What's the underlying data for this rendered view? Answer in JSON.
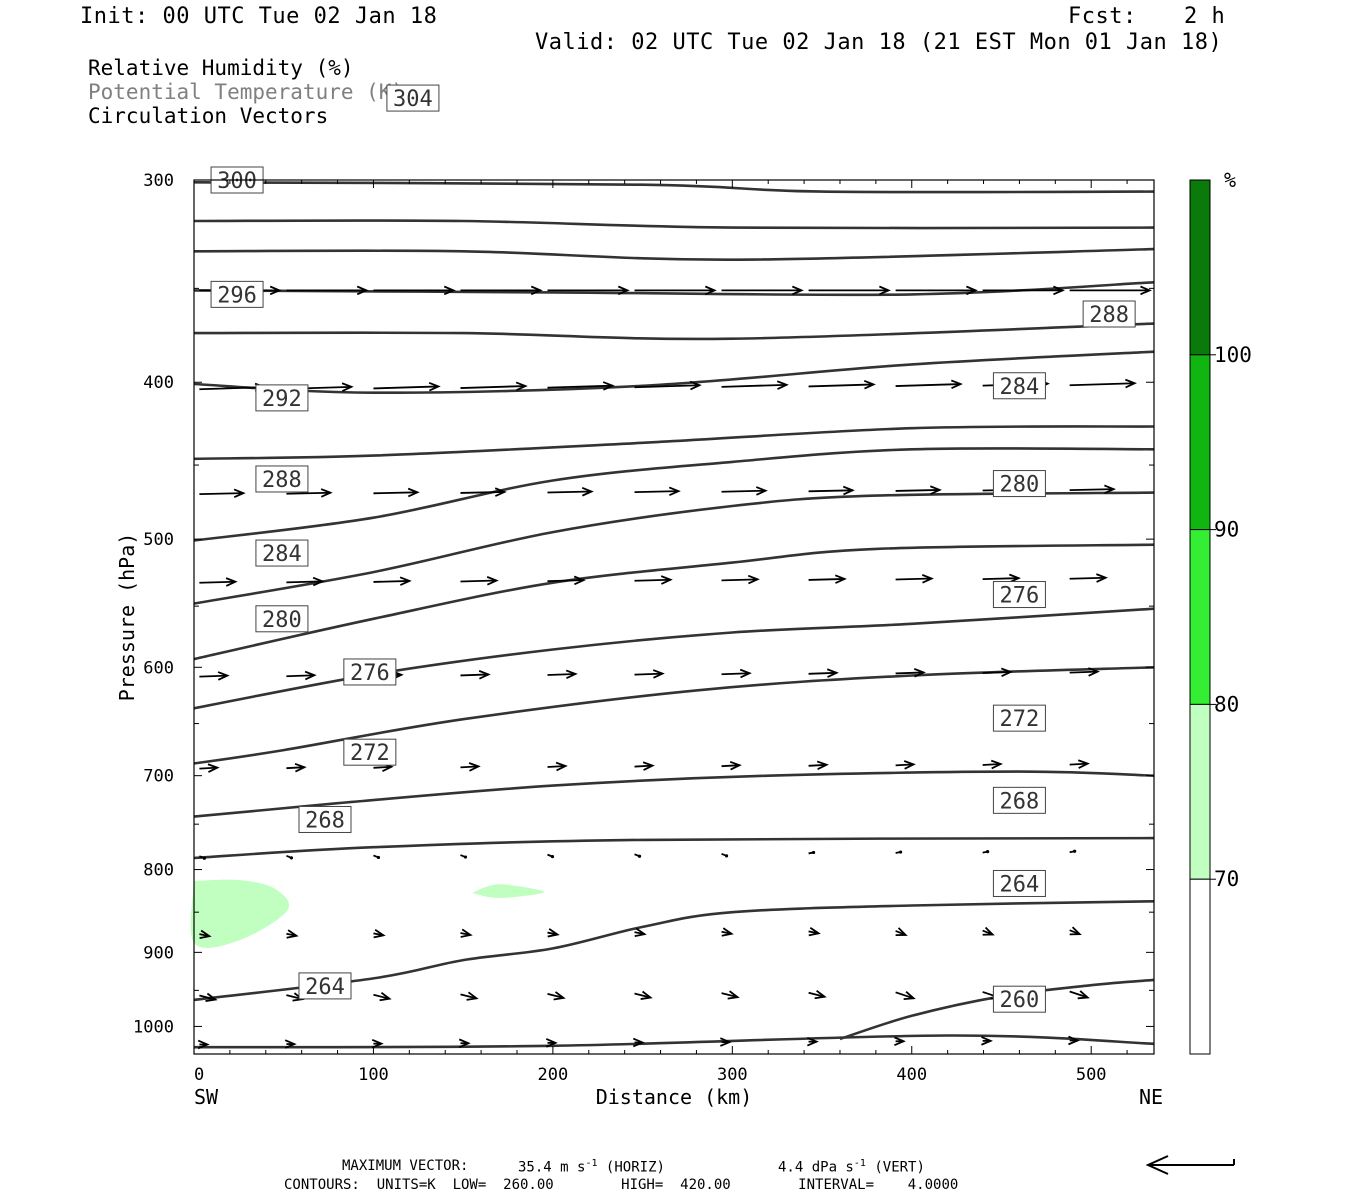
{
  "header": {
    "init": "Init: 00 UTC Tue 02 Jan 18",
    "fcst_label": "Fcst:",
    "fcst_value": "2 h",
    "valid": "Valid: 02 UTC Tue 02 Jan 18 (21 EST Mon 01 Jan 18)"
  },
  "legend": {
    "rh": "Relative Humidity (%)",
    "theta": "Potential Temperature (K)",
    "vectors": "Circulation Vectors"
  },
  "colors": {
    "rh_70": "#c0ffc0",
    "rh_80": "#33ee33",
    "rh_90": "#11b511",
    "rh_100": "#0a7a0a",
    "contour": "#333333",
    "theta_legend_text": "#808080"
  },
  "chart_data": {
    "type": "cross-section",
    "xlabel": "Distance (km)",
    "ylabel": "Pressure (hPa)",
    "xlim": [
      0,
      535
    ],
    "ylim": [
      1040,
      300
    ],
    "y_scale": "log",
    "x_ticks": [
      0,
      100,
      200,
      300,
      400,
      500
    ],
    "y_ticks": [
      300,
      400,
      500,
      600,
      700,
      800,
      900,
      1000
    ],
    "x_endpoints": {
      "left": "SW",
      "right": "NE"
    },
    "colorbar": {
      "unit": "%",
      "levels": [
        70,
        80,
        90,
        100
      ],
      "colors": [
        "#ffffff",
        "#c0ffc0",
        "#33ee33",
        "#11b511",
        "#0a7a0a"
      ]
    },
    "theta_contours": [
      {
        "label": "",
        "points": [
          [
            0,
            1030
          ],
          [
            200,
            1028
          ],
          [
            420,
            1013
          ],
          [
            535,
            1025
          ]
        ]
      },
      {
        "label": "260",
        "label_at": [
          460,
          962
        ],
        "points": [
          [
            360,
            1018
          ],
          [
            400,
            985
          ],
          [
            450,
            958
          ],
          [
            500,
            943
          ],
          [
            535,
            936
          ]
        ]
      },
      {
        "label": "264",
        "label_at": [
          73,
          944
        ],
        "points": [
          [
            0,
            963
          ],
          [
            100,
            934
          ],
          [
            150,
            910
          ],
          [
            200,
            895
          ],
          [
            250,
            868
          ],
          [
            300,
            850
          ],
          [
            400,
            842
          ],
          [
            535,
            837
          ]
        ]
      },
      {
        "label": "264",
        "label_at": [
          460,
          816
        ]
      },
      {
        "label": "268",
        "label_at": [
          73,
          745
        ],
        "points": [
          [
            0,
            787
          ],
          [
            100,
            775
          ],
          [
            250,
            767
          ],
          [
            535,
            765
          ]
        ]
      },
      {
        "label": "268",
        "label_at": [
          460,
          725
        ]
      },
      {
        "label": "272",
        "label_at": [
          98,
          677
        ],
        "points": [
          [
            0,
            742
          ],
          [
            80,
            728
          ],
          [
            200,
            710
          ],
          [
            320,
            700
          ],
          [
            460,
            696
          ],
          [
            535,
            700
          ]
        ]
      },
      {
        "label": "272",
        "label_at": [
          460,
          645
        ]
      },
      {
        "label": "276",
        "label_at": [
          98,
          604
        ],
        "points": [
          [
            0,
            688
          ],
          [
            50,
            675
          ],
          [
            150,
            646
          ],
          [
            280,
            620
          ],
          [
            400,
            607
          ],
          [
            535,
            600
          ]
        ]
      },
      {
        "label": "276",
        "label_at": [
          460,
          541
        ]
      },
      {
        "label": "280",
        "label_at": [
          49,
          560
        ],
        "points": [
          [
            0,
            636
          ],
          [
            100,
            606
          ],
          [
            200,
            585
          ],
          [
            300,
            571
          ],
          [
            400,
            564
          ],
          [
            535,
            552
          ]
        ]
      },
      {
        "label": "280",
        "label_at": [
          460,
          462
        ]
      },
      {
        "label": "284",
        "label_at": [
          49,
          510
        ],
        "points": [
          [
            0,
            593
          ],
          [
            100,
            560
          ],
          [
            200,
            532
          ],
          [
            300,
            517
          ],
          [
            380,
            507
          ],
          [
            535,
            504
          ]
        ]
      },
      {
        "label": "284",
        "label_at": [
          460,
          402
        ]
      },
      {
        "label": "288",
        "label_at": [
          49,
          459
        ],
        "points": [
          [
            0,
            548
          ],
          [
            100,
            524
          ],
          [
            200,
            495
          ],
          [
            300,
            477
          ],
          [
            380,
            470
          ],
          [
            535,
            468
          ]
        ]
      },
      {
        "label": "288",
        "label_at": [
          510,
          363
        ]
      },
      {
        "label": "292",
        "label_at": [
          49,
          409
        ],
        "points": [
          [
            0,
            501
          ],
          [
            100,
            485
          ],
          [
            200,
            460
          ],
          [
            300,
            448
          ],
          [
            400,
            440
          ],
          [
            535,
            440
          ]
        ]
      },
      {
        "label": "296",
        "label_at": [
          24,
          353
        ],
        "points": [
          [
            0,
            446
          ],
          [
            100,
            444
          ],
          [
            250,
            436
          ],
          [
            400,
            427
          ],
          [
            535,
            426
          ]
        ]
      },
      {
        "label": "300",
        "label_at": [
          24,
          300
        ],
        "points": [
          [
            0,
            401
          ],
          [
            100,
            406
          ],
          [
            250,
            402
          ],
          [
            400,
            390
          ],
          [
            535,
            383
          ]
        ]
      },
      {
        "label": "304",
        "label_at": [
          122,
          267
        ],
        "points": [
          [
            0,
            373
          ],
          [
            150,
            373
          ],
          [
            300,
            376
          ],
          [
            535,
            368
          ]
        ]
      }
    ],
    "rh_regions": [
      {
        "level": 70,
        "points": [
          [
            0,
            813
          ],
          [
            25,
            812
          ],
          [
            45,
            822
          ],
          [
            52,
            848
          ],
          [
            25,
            885
          ],
          [
            0,
            888
          ]
        ]
      },
      {
        "level": 70,
        "points": [
          [
            155,
            827
          ],
          [
            170,
            817
          ],
          [
            195,
            826
          ],
          [
            170,
            833
          ]
        ]
      }
    ],
    "max_vector_horiz": "35.4 m s",
    "max_vector_vert": "4.4 dPa s",
    "contour_units": "K",
    "contour_low": "260.00",
    "contour_high": "420.00",
    "contour_interval": "4.0000"
  },
  "footer": {
    "max_vector_label": "MAXIMUM VECTOR:",
    "horiz_value": "35.4 m s",
    "horiz_exp": "-1",
    "horiz_tag": "(HORIZ)",
    "vert_value": "4.4 dPa s",
    "vert_exp": "-1",
    "vert_tag": "(VERT)",
    "contours_line": "CONTOURS:  UNITS=K  LOW=  260.00        HIGH=  420.00        INTERVAL=    4.0000"
  }
}
